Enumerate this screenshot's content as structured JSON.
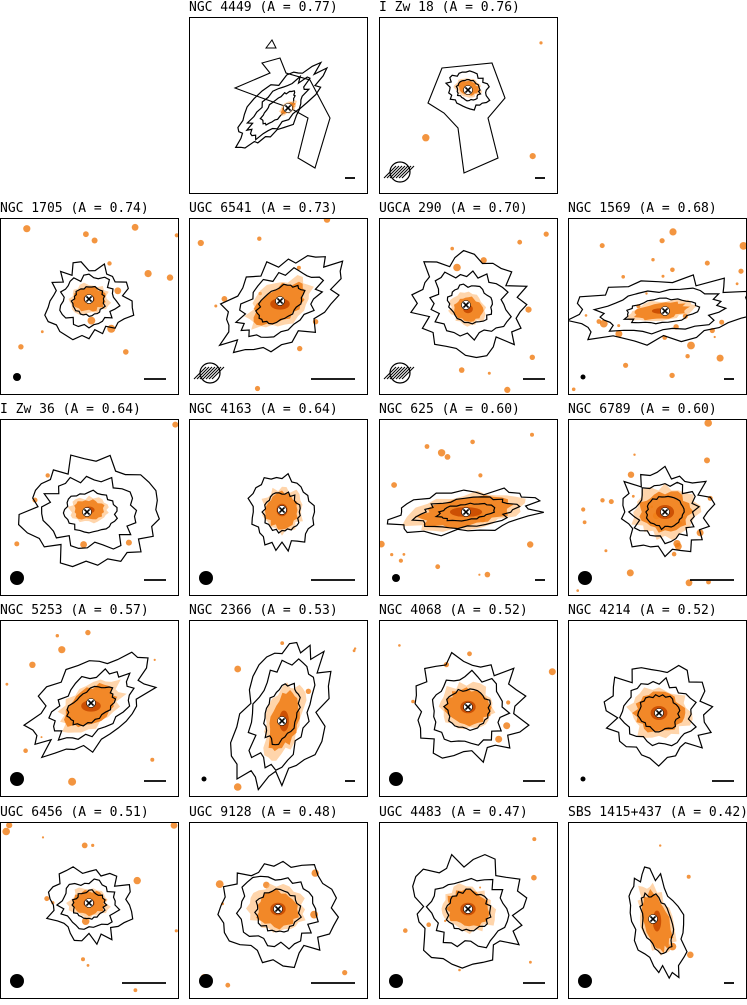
{
  "panels": [
    {
      "id": "ngc4449",
      "title": "NGC 4449 (A = 0.77)",
      "shape": "ngc4449",
      "beam": "none",
      "scalebar": "small"
    },
    {
      "id": "izw18",
      "title": "I Zw 18 (A = 0.76)",
      "shape": "izw18",
      "beam": "hatched",
      "scalebar": "small"
    },
    {
      "id": "ngc1705",
      "title": "NGC 1705 (A = 0.74)",
      "shape": "tall",
      "beam": "small-solid",
      "scalebar": "medium"
    },
    {
      "id": "ugc6541",
      "title": "UGC 6541 (A = 0.73)",
      "shape": "tilted",
      "beam": "hatched",
      "scalebar": "long"
    },
    {
      "id": "ugca290",
      "title": "UGCA 290 (A = 0.70)",
      "shape": "irregular",
      "beam": "hatched",
      "scalebar": "medium"
    },
    {
      "id": "ngc1569",
      "title": "NGC 1569 (A = 0.68)",
      "shape": "wide",
      "beam": "dot",
      "scalebar": "small"
    },
    {
      "id": "izw36",
      "title": "I Zw 36 (A = 0.64)",
      "shape": "izw36",
      "beam": "solid",
      "scalebar": "medium"
    },
    {
      "id": "ngc4163",
      "title": "NGC 4163 (A = 0.64)",
      "shape": "ngc4163",
      "beam": "solid",
      "scalebar": "long"
    },
    {
      "id": "ngc625",
      "title": "NGC 625 (A = 0.60)",
      "shape": "flat",
      "beam": "small-solid",
      "scalebar": "small"
    },
    {
      "id": "ngc6789",
      "title": "NGC 6789 (A = 0.60)",
      "shape": "round",
      "beam": "solid",
      "scalebar": "long"
    },
    {
      "id": "ngc5253",
      "title": "NGC 5253 (A = 0.57)",
      "shape": "tilted",
      "beam": "solid",
      "scalebar": "medium"
    },
    {
      "id": "ngc2366",
      "title": "NGC 2366 (A = 0.53)",
      "shape": "ngc2366",
      "beam": "dot",
      "scalebar": "small"
    },
    {
      "id": "ngc4068",
      "title": "NGC 4068 (A = 0.52)",
      "shape": "oval",
      "beam": "solid",
      "scalebar": "medium"
    },
    {
      "id": "ngc4214",
      "title": "NGC 4214 (A = 0.52)",
      "shape": "ngc4214",
      "beam": "dot",
      "scalebar": "medium"
    },
    {
      "id": "ugc6456",
      "title": "UGC 6456 (A = 0.51)",
      "shape": "tall",
      "beam": "solid",
      "scalebar": "long"
    },
    {
      "id": "ugc9128",
      "title": "UGC 9128 (A = 0.48)",
      "shape": "oval",
      "beam": "solid",
      "scalebar": "long"
    },
    {
      "id": "ugc4483",
      "title": "UGC 4483 (A = 0.47)",
      "shape": "oval",
      "beam": "solid",
      "scalebar": "medium"
    },
    {
      "id": "sbs1415",
      "title": "SBS 1415+437 (A = 0.42)",
      "shape": "sbs",
      "beam": "solid",
      "scalebar": "small"
    }
  ],
  "colors": {
    "frame": "#000000",
    "contour": "#000000",
    "core": "#1a0800",
    "emission": "#f07a10",
    "halo": "#ffb266"
  },
  "icons": {
    "center": "cross-marker-icon",
    "beam": "beam-ellipse-icon"
  }
}
